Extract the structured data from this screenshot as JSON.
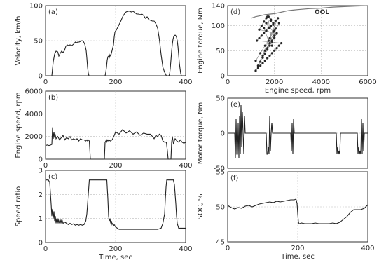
{
  "chart_data": [
    {
      "panel": "(a)",
      "type": "line",
      "xlim": [
        0,
        400
      ],
      "ylim": [
        0,
        100
      ],
      "xticks": [
        0,
        200,
        400
      ],
      "yticks": [
        0,
        50,
        100
      ],
      "xlabel": "",
      "ylabel": "Velocity, km/h",
      "grid": true,
      "series": [
        {
          "x": [
            0,
            18,
            22,
            26,
            30,
            35,
            38,
            42,
            46,
            50,
            54,
            58,
            62,
            66,
            70,
            75,
            80,
            85,
            88,
            92,
            96,
            100,
            104,
            108,
            112,
            116,
            118,
            120,
            122,
            124,
            126,
            128,
            130,
            170,
            172,
            174,
            176,
            178,
            180,
            182,
            184,
            186,
            188,
            190,
            192,
            194,
            196,
            198,
            200,
            202,
            206,
            210,
            215,
            220,
            225,
            230,
            235,
            240,
            245,
            250,
            255,
            260,
            265,
            270,
            275,
            280,
            285,
            290,
            295,
            300,
            305,
            310,
            315,
            320,
            325,
            330,
            335,
            340,
            345,
            348,
            350,
            352,
            354,
            356,
            358,
            360,
            362,
            364,
            366,
            368,
            370,
            372,
            374,
            376,
            378,
            380,
            382,
            384,
            386,
            388,
            390,
            392,
            394,
            396,
            398,
            400
          ],
          "y": [
            0,
            0,
            20,
            31,
            35,
            34,
            28,
            32,
            35,
            33,
            36,
            42,
            44,
            43,
            44,
            43,
            45,
            48,
            47,
            48,
            48,
            49,
            50,
            49,
            45,
            36,
            25,
            12,
            4,
            0,
            0,
            0,
            0,
            0,
            5,
            12,
            22,
            27,
            28,
            26,
            30,
            28,
            32,
            36,
            40,
            44,
            55,
            62,
            64,
            65,
            69,
            73,
            78,
            84,
            88,
            91,
            92,
            92,
            91,
            92,
            90,
            88,
            88,
            87,
            88,
            86,
            82,
            84,
            80,
            79,
            78,
            78,
            74,
            68,
            52,
            30,
            12,
            5,
            0,
            0,
            0,
            0,
            2,
            10,
            22,
            35,
            45,
            52,
            56,
            57,
            58,
            57,
            55,
            50,
            42,
            30,
            18,
            10,
            3,
            0,
            0,
            0,
            0,
            0,
            0,
            0
          ]
        }
      ]
    },
    {
      "panel": "(b)",
      "type": "line",
      "xlim": [
        0,
        400
      ],
      "ylim": [
        0,
        6000
      ],
      "xticks": [
        0,
        200,
        400
      ],
      "yticks": [
        0,
        2000,
        4000,
        6000
      ],
      "xlabel": "",
      "ylabel": "Engine speed, rpm",
      "grid": true,
      "series": [
        {
          "x": [
            0,
            5,
            10,
            15,
            18,
            20,
            22,
            24,
            26,
            28,
            30,
            35,
            40,
            45,
            50,
            55,
            60,
            65,
            70,
            75,
            80,
            85,
            90,
            95,
            100,
            105,
            110,
            115,
            118,
            120,
            122,
            125,
            128,
            130,
            135,
            140,
            150,
            160,
            168,
            170,
            172,
            174,
            176,
            178,
            180,
            185,
            190,
            195,
            200,
            210,
            220,
            230,
            240,
            250,
            260,
            270,
            280,
            290,
            300,
            305,
            310,
            315,
            320,
            325,
            330,
            335,
            340,
            345,
            348,
            350,
            352,
            355,
            358,
            360,
            362,
            365,
            370,
            375,
            380,
            385,
            390,
            395,
            400
          ],
          "y": [
            1200,
            1250,
            1200,
            1250,
            1300,
            2800,
            1800,
            2400,
            1900,
            2100,
            1800,
            2000,
            1700,
            1900,
            2100,
            1700,
            1900,
            1800,
            2000,
            1700,
            1800,
            1700,
            1800,
            1600,
            1800,
            1700,
            1700,
            1600,
            1700,
            1600,
            1700,
            1600,
            0,
            0,
            0,
            0,
            0,
            0,
            0,
            1500,
            1600,
            1500,
            1700,
            1600,
            1700,
            1600,
            1700,
            2000,
            2400,
            2200,
            2600,
            2300,
            2500,
            2200,
            2400,
            2100,
            2300,
            2200,
            2200,
            2000,
            1800,
            2100,
            2000,
            2200,
            2100,
            1600,
            1500,
            1500,
            700,
            0,
            0,
            0,
            0,
            1500,
            2000,
            1400,
            1800,
            1600,
            1500,
            1700,
            1500,
            1400,
            1500
          ]
        }
      ]
    },
    {
      "panel": "(c)",
      "type": "line",
      "xlim": [
        0,
        400
      ],
      "ylim": [
        0,
        3
      ],
      "xticks": [
        0,
        200,
        400
      ],
      "yticks": [
        0,
        1,
        2,
        3
      ],
      "xlabel": "Time, sec",
      "ylabel": "Speed ratio",
      "grid": true,
      "series": [
        {
          "x": [
            0,
            8,
            12,
            16,
            18,
            20,
            22,
            24,
            26,
            28,
            30,
            32,
            34,
            36,
            38,
            40,
            42,
            44,
            46,
            48,
            50,
            55,
            60,
            65,
            70,
            75,
            80,
            85,
            90,
            95,
            100,
            105,
            110,
            115,
            118,
            120,
            122,
            124,
            125,
            130,
            140,
            150,
            160,
            170,
            175,
            178,
            180,
            182,
            184,
            186,
            188,
            190,
            192,
            194,
            196,
            198,
            200,
            205,
            210,
            220,
            230,
            240,
            250,
            260,
            270,
            280,
            290,
            300,
            310,
            320,
            330,
            335,
            340,
            342,
            344,
            346,
            348,
            350,
            355,
            360,
            365,
            368,
            370,
            372,
            374,
            376,
            378,
            380,
            385,
            390,
            395,
            400
          ],
          "y": [
            2.6,
            2.6,
            2.5,
            1.6,
            1.1,
            1.4,
            1.0,
            1.3,
            0.9,
            1.1,
            0.8,
            1.0,
            0.8,
            1.0,
            0.8,
            0.9,
            0.8,
            0.95,
            0.8,
            0.9,
            0.8,
            0.85,
            0.8,
            0.75,
            0.8,
            0.75,
            0.78,
            0.72,
            0.75,
            0.72,
            0.75,
            0.72,
            0.75,
            0.9,
            1.2,
            1.6,
            2.0,
            2.4,
            2.6,
            2.6,
            2.6,
            2.6,
            2.6,
            2.6,
            2.6,
            1.8,
            1.1,
            0.9,
            1.0,
            0.8,
            0.9,
            0.75,
            0.8,
            0.7,
            0.75,
            0.7,
            0.65,
            0.6,
            0.55,
            0.55,
            0.55,
            0.55,
            0.55,
            0.55,
            0.55,
            0.55,
            0.55,
            0.55,
            0.55,
            0.55,
            0.6,
            0.8,
            1.2,
            1.8,
            2.3,
            2.6,
            2.6,
            2.6,
            2.6,
            2.6,
            2.6,
            2.4,
            2.0,
            1.6,
            1.1,
            0.8,
            0.7,
            0.6,
            0.6,
            0.6,
            0.6,
            0.6
          ]
        }
      ]
    },
    {
      "panel": "(d)",
      "type": "scatter",
      "xlim": [
        0,
        6000
      ],
      "ylim": [
        0,
        140
      ],
      "xticks": [
        0,
        2000,
        4000,
        6000
      ],
      "yticks": [
        0,
        50,
        100,
        140
      ],
      "xlabel": "Engine speed, rpm",
      "ylabel": "Engine torque, Nm",
      "grid": true,
      "annotations": [
        "OOL"
      ],
      "series": [
        {
          "name": "OOL",
          "x": [
            1000,
            1200,
            1400,
            1600,
            1800,
            2000,
            2200,
            2400,
            2600,
            2800,
            3000,
            3500,
            4000,
            4500,
            5000,
            5500,
            6000
          ],
          "y": [
            115,
            118,
            120,
            122,
            123,
            124,
            126,
            128,
            130,
            131,
            132,
            134,
            135,
            137,
            138,
            139,
            140
          ]
        },
        {
          "x": [
            1200,
            1300,
            1400,
            1500,
            1600,
            1700,
            1800,
            1900,
            2000,
            2100,
            2200,
            2300,
            1250,
            1350,
            1450,
            1550,
            1650,
            1750,
            1850,
            1950,
            2050,
            2150,
            1300,
            1400,
            1500,
            1600,
            1700,
            1800,
            1900,
            2000,
            2100,
            1350,
            1450,
            1550,
            1650,
            1750,
            1850,
            1950,
            2050,
            1200,
            1400,
            1600,
            1800,
            2000,
            2200,
            1500,
            1700,
            1900,
            2100,
            1600,
            1800,
            2000,
            1550,
            1750,
            1950,
            1650,
            1850,
            1700,
            1800,
            1900
          ],
          "y": [
            10,
            15,
            20,
            25,
            30,
            35,
            40,
            45,
            50,
            55,
            60,
            65,
            70,
            75,
            80,
            85,
            90,
            95,
            100,
            105,
            110,
            115,
            20,
            28,
            36,
            44,
            52,
            60,
            68,
            76,
            84,
            92,
            100,
            108,
            115,
            118,
            110,
            102,
            94,
            30,
            45,
            60,
            75,
            90,
            105,
            40,
            55,
            70,
            85,
            50,
            65,
            80,
            95,
            70,
            88,
            105,
            112,
            118,
            96,
            60
          ]
        }
      ]
    },
    {
      "panel": "(e)",
      "type": "line",
      "xlim": [
        0,
        400
      ],
      "ylim": [
        -50,
        50
      ],
      "xticks": [],
      "yticks": [
        -50,
        0,
        50
      ],
      "xlabel": "",
      "ylabel": "Motor torque, Nm",
      "grid": true,
      "series": [
        {
          "x": [
            0,
            10,
            20,
            22,
            24,
            26,
            28,
            30,
            32,
            34,
            36,
            38,
            40,
            42,
            44,
            46,
            48,
            50,
            55,
            60,
            80,
            100,
            110,
            112,
            114,
            116,
            118,
            120,
            122,
            124,
            126,
            128,
            130,
            150,
            170,
            180,
            182,
            184,
            186,
            188,
            190,
            200,
            220,
            240,
            260,
            280,
            300,
            310,
            312,
            314,
            316,
            318,
            320,
            322,
            330,
            340,
            350,
            360,
            370,
            372,
            374,
            376,
            378,
            380,
            382,
            384,
            386,
            388,
            390,
            395,
            400
          ],
          "y": [
            0,
            0,
            0,
            -35,
            20,
            -30,
            -30,
            15,
            -35,
            25,
            -30,
            40,
            -20,
            30,
            0,
            -30,
            25,
            0,
            0,
            0,
            0,
            0,
            0,
            -30,
            -30,
            -20,
            -30,
            25,
            -25,
            0,
            15,
            0,
            0,
            0,
            0,
            0,
            -25,
            15,
            -30,
            20,
            0,
            0,
            0,
            0,
            0,
            0,
            0,
            0,
            -30,
            -20,
            -30,
            -25,
            -30,
            0,
            0,
            0,
            0,
            0,
            0,
            -30,
            -20,
            -30,
            -25,
            -30,
            20,
            -30,
            15,
            -25,
            0,
            0,
            0
          ]
        }
      ]
    },
    {
      "panel": "(f)",
      "type": "line",
      "xlim": [
        0,
        400
      ],
      "ylim": [
        45,
        55
      ],
      "xticks": [
        0,
        200,
        400
      ],
      "yticks": [
        45,
        50,
        55
      ],
      "xlabel": "Time, sec",
      "ylabel": "SOC, %",
      "grid": true,
      "series": [
        {
          "x": [
            0,
            10,
            20,
            30,
            40,
            50,
            60,
            70,
            80,
            90,
            100,
            110,
            120,
            130,
            140,
            150,
            160,
            170,
            180,
            190,
            195,
            198,
            200,
            202,
            204,
            206,
            210,
            220,
            230,
            240,
            250,
            260,
            270,
            280,
            290,
            300,
            310,
            320,
            330,
            340,
            350,
            360,
            370,
            380,
            390,
            400
          ],
          "y": [
            50.2,
            49.9,
            49.7,
            49.9,
            49.8,
            50.1,
            50.2,
            50.0,
            50.2,
            50.4,
            50.5,
            50.6,
            50.7,
            50.6,
            50.8,
            50.7,
            50.8,
            50.9,
            51.0,
            51.0,
            51.1,
            50.5,
            49.0,
            47.8,
            47.6,
            47.6,
            47.7,
            47.6,
            47.6,
            47.6,
            47.7,
            47.6,
            47.6,
            47.6,
            47.6,
            47.7,
            47.6,
            47.8,
            48.2,
            48.6,
            49.2,
            49.6,
            49.6,
            49.6,
            49.8,
            50.3
          ]
        }
      ]
    }
  ]
}
